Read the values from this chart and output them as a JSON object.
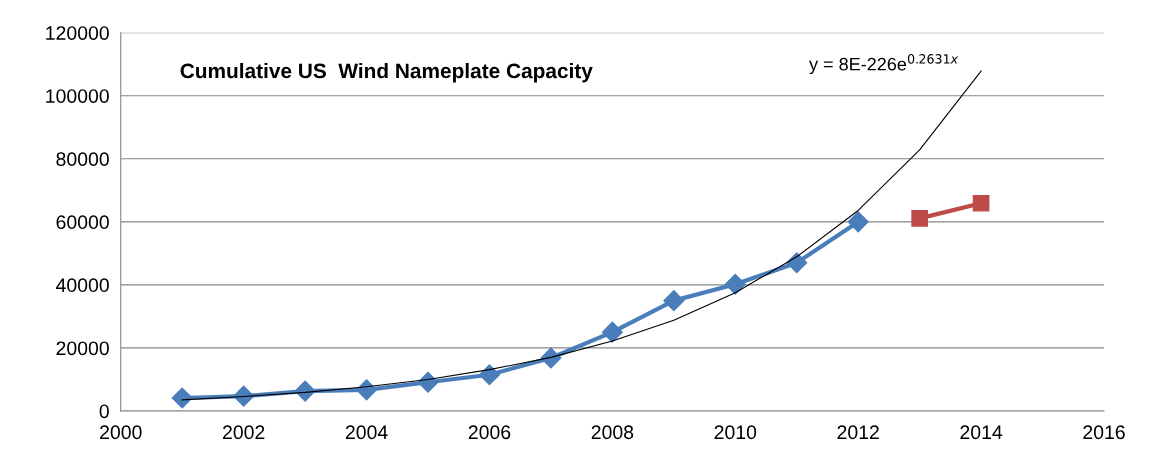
{
  "chart_data": {
    "type": "line",
    "title": "Cumulative US  Wind Nameplate Capacity",
    "series": [
      {
        "color": "#4a7ebb",
        "marker": "diamond",
        "x": [
          2001,
          2002,
          2003,
          2004,
          2005,
          2006,
          2007,
          2008,
          2009,
          2010,
          2011,
          2012
        ],
        "values": [
          4100,
          4700,
          6300,
          6700,
          9100,
          11500,
          16800,
          25000,
          35000,
          40200,
          47000,
          60000
        ]
      },
      {
        "color": "#be4b48",
        "marker": "square",
        "x": [
          2013,
          2014
        ],
        "values": [
          61100,
          65900
        ]
      },
      {
        "color": "#000000",
        "marker": "none",
        "x": [
          2001,
          2002,
          2003,
          2004,
          2005,
          2006,
          2007,
          2008,
          2009,
          2010,
          2011,
          2012,
          2013,
          2014
        ],
        "values": [
          3500,
          4600,
          5900,
          7700,
          10000,
          13100,
          17000,
          22200,
          28800,
          37500,
          48900,
          63600,
          82800,
          107800
        ]
      }
    ],
    "annotations": [
      "y = 8E-226e$^{0.2631x}$"
    ],
    "xlim": [
      2000,
      2016
    ],
    "xticks": [
      2000,
      2002,
      2004,
      2006,
      2008,
      2010,
      2012,
      2014,
      2016
    ],
    "ylim": [
      0,
      120000
    ],
    "yticks": [
      0,
      20000,
      40000,
      60000,
      80000,
      100000,
      120000
    ],
    "grid": "y",
    "legend": false
  }
}
